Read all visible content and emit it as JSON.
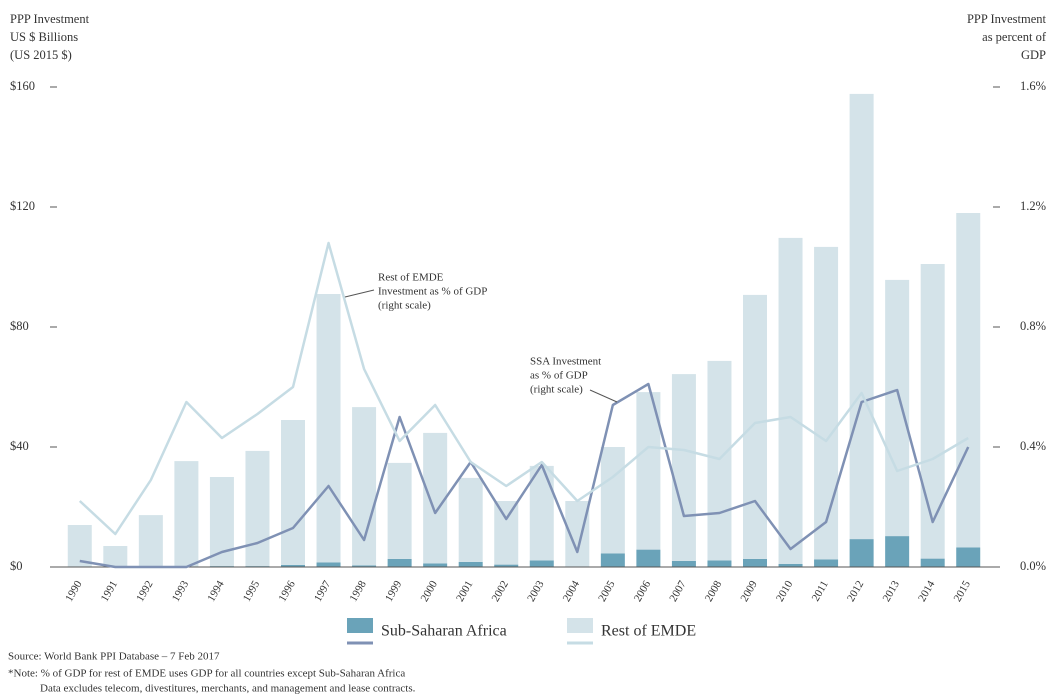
{
  "chart_data": {
    "type": "bar",
    "stacked": true,
    "y_label": [
      "PPP Investment",
      "US $ Billions",
      "(US 2015 $)"
    ],
    "y2_label": [
      "PPP Investment",
      "as percent of",
      "GDP"
    ],
    "categories": [
      "1990",
      "1991",
      "1992",
      "1993",
      "1994",
      "1995",
      "1996",
      "1997",
      "1998",
      "1999",
      "2000",
      "2001",
      "2002",
      "2003",
      "2004",
      "2005",
      "2006",
      "2007",
      "2008",
      "2009",
      "2010",
      "2011",
      "2012",
      "2013",
      "2014",
      "2015"
    ],
    "series": [
      {
        "name": "Sub-Saharan Africa",
        "color": "#6aa3b9",
        "values": [
          0.2,
          0.1,
          0.1,
          0.2,
          0.3,
          0.3,
          0.7,
          1.5,
          0.5,
          2.7,
          1.2,
          1.7,
          0.8,
          2.2,
          0.2,
          4.5,
          5.8,
          2,
          2.2,
          2.7,
          1,
          2.5,
          9.3,
          10.3,
          2.8,
          6.5
        ]
      },
      {
        "name": "Rest of EMDE",
        "color": "#d4e3e9",
        "values": [
          13.8,
          6.9,
          17.2,
          35.1,
          29.7,
          38.4,
          48.3,
          89.5,
          52.8,
          32,
          43.5,
          28,
          21.2,
          31.5,
          21.8,
          35.5,
          52.5,
          62.3,
          66.5,
          88,
          108.7,
          104.2,
          148.4,
          85.4,
          98.2,
          111.5
        ]
      }
    ],
    "lines": [
      {
        "color": "#7f91b4",
        "axis": "y2",
        "values": [
          0.02,
          0,
          0,
          0,
          0.05,
          0.08,
          0.13,
          0.27,
          0.09,
          0.5,
          0.18,
          0.35,
          0.16,
          0.34,
          0.05,
          0.54,
          0.61,
          0.17,
          0.18,
          0.22,
          0.06,
          0.15,
          0.55,
          0.59,
          0.15,
          0.4
        ]
      },
      {
        "color": "#c6dce4",
        "axis": "y2",
        "values": [
          0.22,
          0.11,
          0.29,
          0.55,
          0.43,
          0.51,
          0.6,
          1.08,
          0.66,
          0.42,
          0.54,
          0.35,
          0.27,
          0.35,
          0.22,
          0.3,
          0.4,
          0.39,
          0.36,
          0.48,
          0.5,
          0.42,
          0.58,
          0.32,
          0.36,
          0.43
        ]
      }
    ],
    "ylim": [
      0,
      160
    ],
    "yticks": [
      {
        "value": 0,
        "label": "$0"
      },
      {
        "value": 40,
        "label": "$40"
      },
      {
        "value": 80,
        "label": "$80"
      },
      {
        "value": 120,
        "label": "$120"
      },
      {
        "value": 160,
        "label": "$160"
      }
    ],
    "y2lim": [
      0,
      1.6
    ],
    "y2ticks": [
      {
        "value": 0,
        "label": "0.0%"
      },
      {
        "value": 0.4,
        "label": "0.4%"
      },
      {
        "value": 0.8,
        "label": "0.8%"
      },
      {
        "value": 1.2,
        "label": "1.2%"
      },
      {
        "value": 1.6,
        "label": "1.6%"
      }
    ],
    "annotations": [
      {
        "lines": [
          "Rest of EMDE",
          "Investment as % of GDP",
          "(right scale)"
        ]
      },
      {
        "lines": [
          "SSA Investment",
          "as % of GDP",
          "(right scale)"
        ]
      }
    ],
    "source": "Source: World Bank PPI Database – 7 Feb 2017",
    "notes": [
      "*Note: % of GDP for rest of EMDE uses GDP for all countries except Sub-Saharan Africa",
      "Data excludes telecom, divestitures, merchants, and management and lease contracts."
    ]
  }
}
